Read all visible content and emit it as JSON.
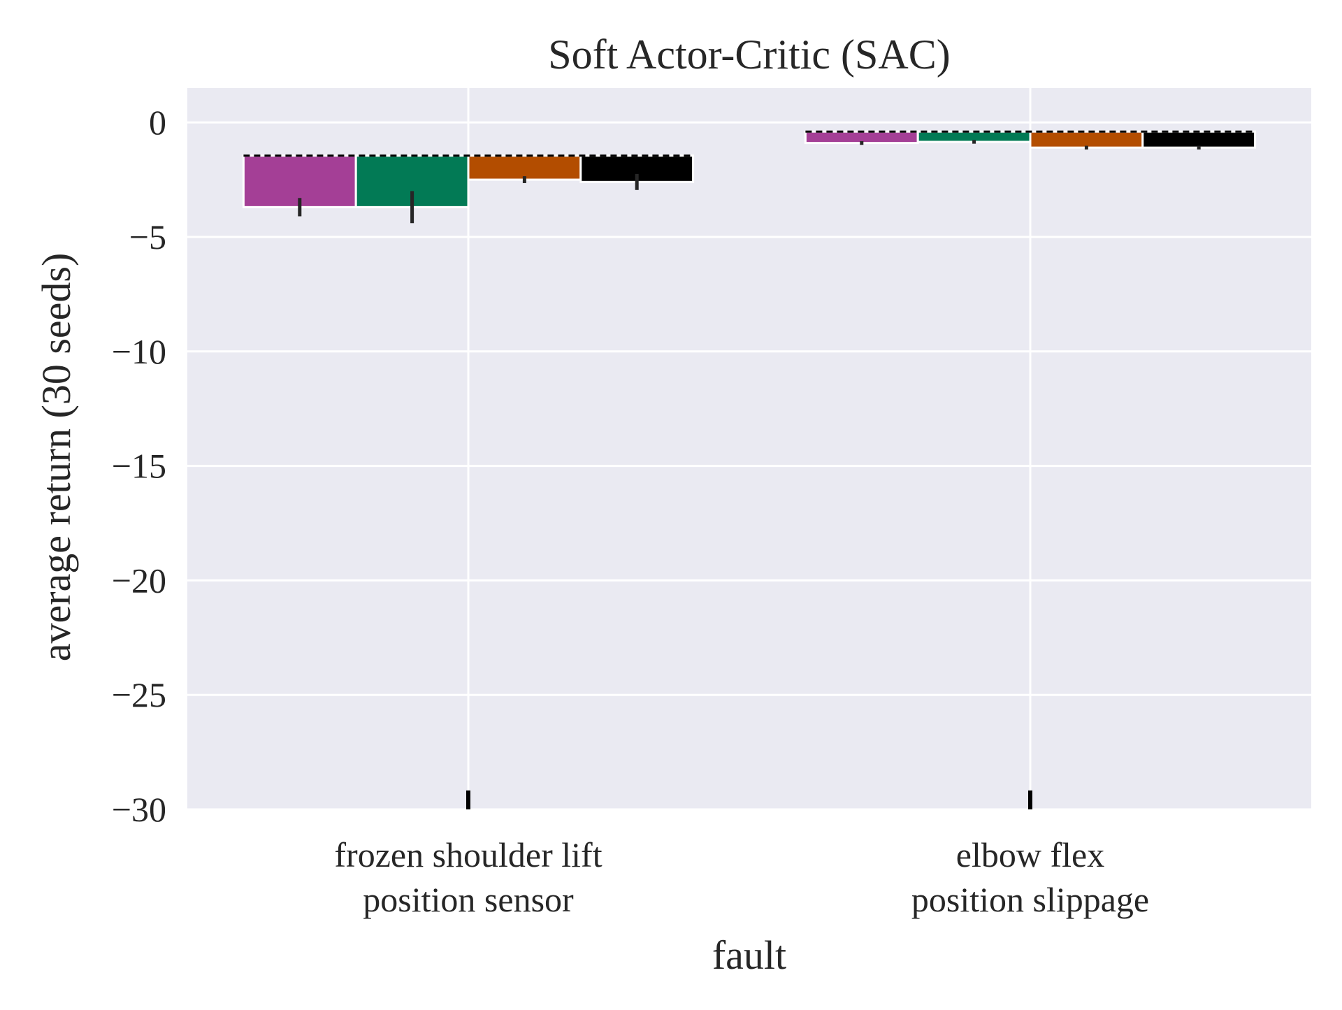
{
  "chart_data": {
    "type": "bar",
    "title": "Soft Actor-Critic (SAC)",
    "xlabel": "fault",
    "ylabel": "average return (30 seeds)",
    "categories": [
      [
        "frozen shoulder lift",
        "position sensor"
      ],
      [
        "elbow flex",
        "position slippage"
      ]
    ],
    "ylim": [
      -30,
      1.5
    ],
    "yticks": [
      0,
      -5,
      -10,
      -15,
      -20,
      -25,
      -30
    ],
    "ytick_labels": [
      "0",
      "−5",
      "−10",
      "−15",
      "−20",
      "−25",
      "−30"
    ],
    "grid": true,
    "background": "#eaeaf2",
    "baseline": [
      -1.45,
      -0.4
    ],
    "baseline_style": "dashed",
    "series": [
      {
        "color": "#a43f96",
        "values": [
          -3.7,
          -0.9
        ],
        "error": [
          0.4,
          0.08
        ]
      },
      {
        "color": "#027a55",
        "values": [
          -3.7,
          -0.85
        ],
        "error": [
          0.7,
          0.08
        ]
      },
      {
        "color": "#b34d00",
        "values": [
          -2.5,
          -1.1
        ],
        "error": [
          0.15,
          0.08
        ]
      },
      {
        "color": "#000000",
        "values": [
          -2.6,
          -1.1
        ],
        "error": [
          0.35,
          0.08
        ]
      }
    ],
    "category_markers": [
      -29.6,
      -29.6
    ]
  }
}
